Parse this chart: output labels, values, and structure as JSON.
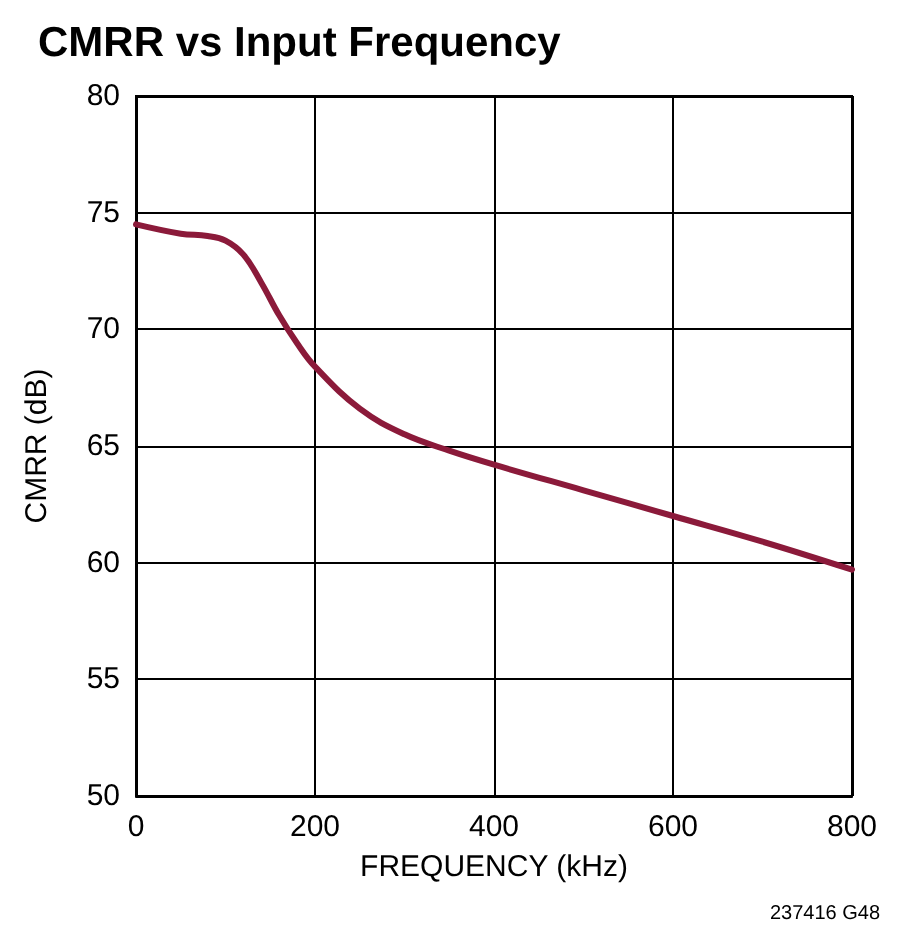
{
  "chart_data": {
    "type": "line",
    "title": "CMRR vs Input Frequency",
    "xlabel": "FREQUENCY (kHz)",
    "ylabel": "CMRR (dB)",
    "annotations": [
      "237416 G48"
    ],
    "x": [
      0,
      50,
      80,
      100,
      120,
      140,
      160,
      180,
      200,
      250,
      300,
      350,
      400,
      500,
      600,
      700,
      800
    ],
    "series": [
      {
        "color": "#8b1a3a",
        "values": [
          74.5,
          74.1,
          74.0,
          73.8,
          73.2,
          72.0,
          70.6,
          69.4,
          68.4,
          66.6,
          65.5,
          64.8,
          64.2,
          63.1,
          62.0,
          60.9,
          59.7
        ]
      }
    ],
    "xlim": [
      0,
      800
    ],
    "xticks": [
      0,
      200,
      400,
      600,
      800
    ],
    "ylim": [
      50,
      80
    ],
    "yticks": [
      50,
      55,
      60,
      65,
      70,
      75,
      80
    ],
    "grid": true,
    "marker": "none",
    "line_style": "solid"
  }
}
